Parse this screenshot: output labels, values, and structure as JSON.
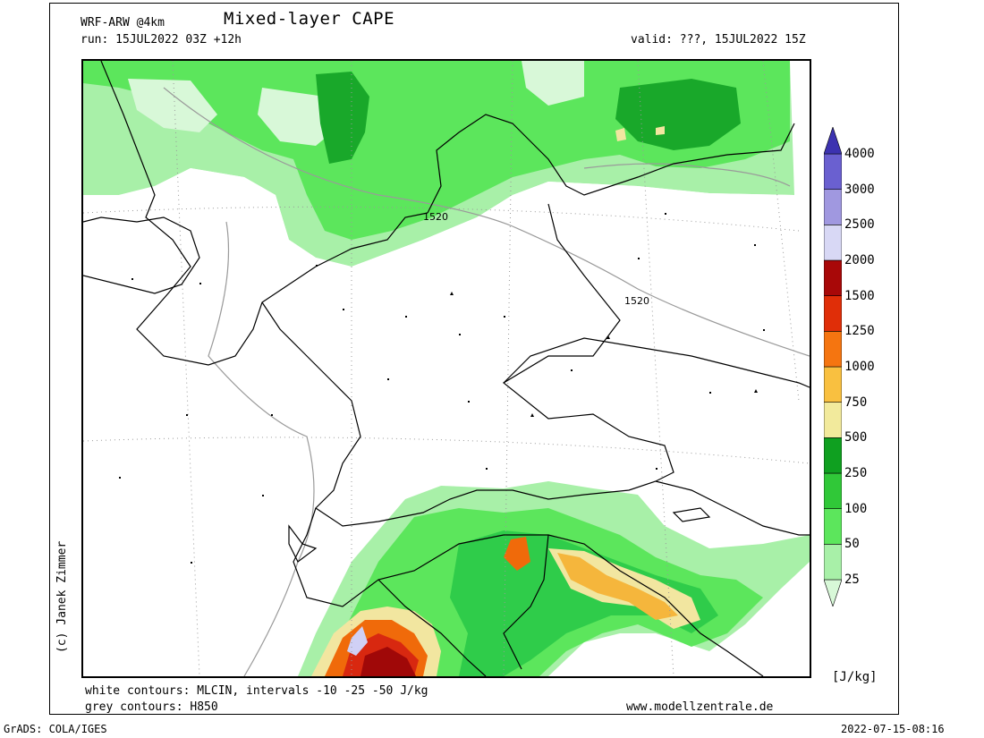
{
  "header": {
    "model": "WRF-ARW @4km",
    "title": "Mixed-layer CAPE",
    "run": "run: 15JUL2022 03Z +12h",
    "valid": "valid: ???, 15JUL2022 15Z"
  },
  "credit": "(c) Janek Zimmer",
  "footer": {
    "white_contours": "white contours: MLCIN, intervals -10 -25 -50 J/kg",
    "grey_contours": "grey contours: H850",
    "website": "www.modellzentrale.de",
    "software": "GrADS: COLA/IGES",
    "timestamp": "2022-07-15-08:16"
  },
  "map": {
    "contour_labels": [
      "1520",
      "1520"
    ],
    "cape_colors": {
      "light_green": "#a8f0a8",
      "green": "#5ce65c",
      "mid_green": "#2fcc4a",
      "dark_green": "#19a82a",
      "pale_yellow": "#f2e6a0",
      "orange_yellow": "#f5b63c",
      "orange": "#f06a0a",
      "red": "#d82810",
      "dark_red": "#a00808",
      "lavender": "#d0d0f5"
    }
  },
  "colorbar": {
    "unit": "[J/kg]",
    "labels": [
      "4000",
      "3000",
      "2500",
      "2000",
      "1500",
      "1250",
      "1000",
      "750",
      "500",
      "250",
      "100",
      "50",
      "25"
    ],
    "colors": [
      "#d8f8d8",
      "#a8f0a8",
      "#5ce65c",
      "#30c838",
      "#0fa020",
      "#f2ea9c",
      "#f9c040",
      "#f57510",
      "#e02e08",
      "#a80808",
      "#d8d8f5",
      "#a098e0",
      "#6a60d0",
      "#3c32b0"
    ]
  }
}
